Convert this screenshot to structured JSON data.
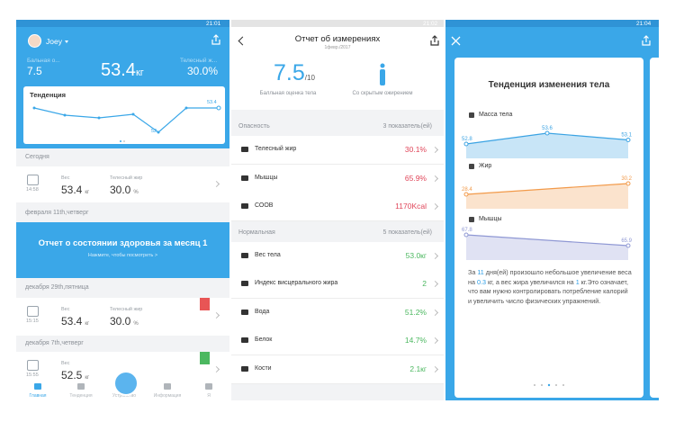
{
  "home": {
    "status_time": "21:01",
    "user": "Joey",
    "score_label": "Бальная о...",
    "score": "7.5",
    "weight": "53.4",
    "fat_label": "Телесный ж...",
    "fat": "30.0%",
    "trend": {
      "title": "Тенденция",
      "last_label": "53.4",
      "min_label": "52"
    },
    "labels": {
      "weight": "Вес",
      "weight_unit": "кг",
      "fat": "Телесный жир",
      "fat_unit": "%"
    },
    "entries": [
      {
        "date": "Сегодня",
        "time": "14:58",
        "weight": "53.4",
        "fat": "30.0"
      },
      {
        "date": "декабря 29th,пятница",
        "time": "15:15",
        "weight": "53.4",
        "fat": "30.0"
      },
      {
        "date": "декабря 7th,четверг",
        "time": "15:55",
        "weight": "52.5"
      }
    ],
    "banner": {
      "date": "февраля 11th,четверг",
      "title": "Отчет о состоянии здоровья за месяц 1",
      "hint": "Нажмите, чтобы посмотреть >"
    },
    "nav": [
      "Главная",
      "Тенденция",
      "Устройство",
      "Информация",
      "Я"
    ]
  },
  "report": {
    "status_time": "21:02",
    "title": "Отчет об измерениях",
    "date": "1февр./2017",
    "score": "7.5",
    "score_max": "/10",
    "score_label": "Балльная оценка тела",
    "body_type": "Со скрытым ожирением",
    "groups": [
      {
        "name": "Опасность",
        "count": "3 показатель(ей)",
        "items": [
          {
            "name": "Телесный жир",
            "value": "30.1%"
          },
          {
            "name": "Мышцы",
            "value": "65.9%"
          },
          {
            "name": "СООВ",
            "value": "1170Kcal"
          }
        ]
      },
      {
        "name": "Нормальная",
        "count": "5 показатель(ей)",
        "items": [
          {
            "name": "Вес тела",
            "value": "53.0кг"
          },
          {
            "name": "Индекс висцерального жира",
            "value": "2"
          },
          {
            "name": "Вода",
            "value": "51.2%"
          },
          {
            "name": "Белок",
            "value": "14.7%"
          },
          {
            "name": "Кости",
            "value": "2.1кг"
          }
        ]
      }
    ]
  },
  "trend": {
    "status_time": "21:04",
    "title": "Тенденция изменения тела",
    "charts": [
      {
        "label": "Масса тела",
        "color": "#3ba3e3",
        "points": [
          52.8,
          53.6,
          53.1
        ]
      },
      {
        "label": "Жир",
        "color": "#f29a4a",
        "points": [
          28.4,
          30.2
        ]
      },
      {
        "label": "Мышцы",
        "color": "#8f98d4",
        "points": [
          67.8,
          65.9
        ]
      }
    ],
    "summary": [
      "За ",
      "11",
      " дня(ей) произошло небольшое увеличение веса на ",
      "0.3",
      " кг, а вес жира увеличился на ",
      "1",
      " кг.Это означает, что вам нужно контролировать потребление калорий и увеличить число физических упражнений."
    ]
  }
}
